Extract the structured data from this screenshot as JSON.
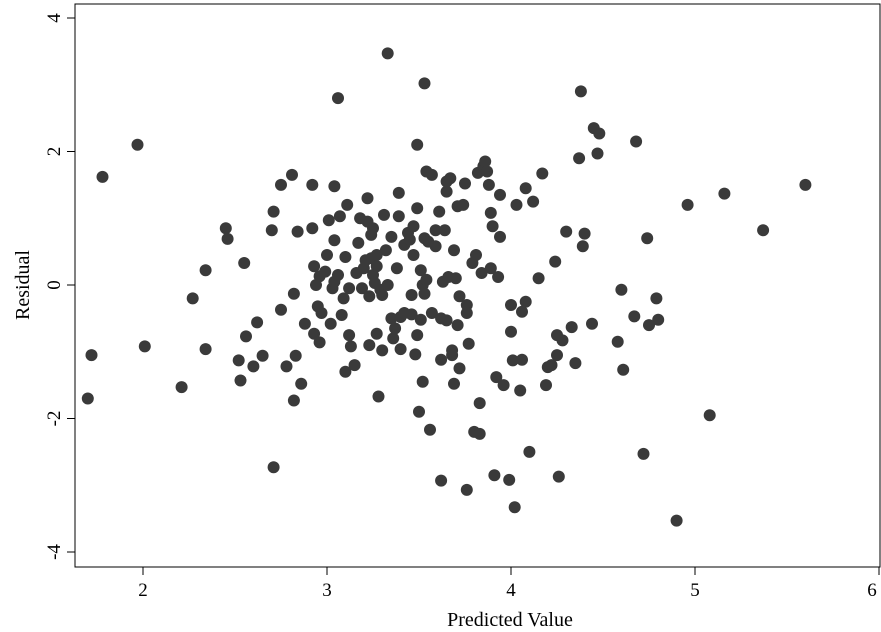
{
  "chart_data": {
    "type": "scatter",
    "xlabel": "Predicted Value",
    "ylabel": "Residual",
    "xlim": [
      1.65,
      6
    ],
    "ylim": [
      -4.2,
      4.2
    ],
    "xticks": [
      "2",
      "3",
      "4",
      "5",
      "6"
    ],
    "yticks": [
      "-4",
      "-2",
      "0",
      "2",
      "4"
    ],
    "grid": false,
    "marker_color": "#3a3a3a",
    "points": [
      [
        1.7,
        -1.7
      ],
      [
        1.72,
        -1.05
      ],
      [
        1.78,
        1.62
      ],
      [
        1.97,
        2.1
      ],
      [
        2.01,
        -0.92
      ],
      [
        2.21,
        -1.53
      ],
      [
        2.27,
        -0.2
      ],
      [
        2.34,
        0.22
      ],
      [
        2.34,
        -0.96
      ],
      [
        2.45,
        0.85
      ],
      [
        2.46,
        0.69
      ],
      [
        2.52,
        -1.13
      ],
      [
        2.53,
        -1.43
      ],
      [
        2.55,
        0.33
      ],
      [
        2.56,
        -0.77
      ],
      [
        2.6,
        -1.22
      ],
      [
        2.62,
        -0.56
      ],
      [
        2.65,
        -1.06
      ],
      [
        2.7,
        0.82
      ],
      [
        2.71,
        1.1
      ],
      [
        2.71,
        -2.73
      ],
      [
        2.75,
        1.5
      ],
      [
        2.75,
        -0.37
      ],
      [
        2.78,
        -1.22
      ],
      [
        2.81,
        1.65
      ],
      [
        2.82,
        -1.73
      ],
      [
        2.82,
        -0.13
      ],
      [
        2.83,
        -1.06
      ],
      [
        2.84,
        0.8
      ],
      [
        2.86,
        -1.48
      ],
      [
        2.88,
        -0.58
      ],
      [
        2.92,
        0.85
      ],
      [
        2.92,
        1.5
      ],
      [
        2.93,
        0.28
      ],
      [
        2.93,
        -0.73
      ],
      [
        2.94,
        0.0
      ],
      [
        2.95,
        -0.32
      ],
      [
        2.96,
        0.13
      ],
      [
        2.96,
        -0.86
      ],
      [
        2.97,
        -0.42
      ],
      [
        2.99,
        0.2
      ],
      [
        3.0,
        0.45
      ],
      [
        3.01,
        0.97
      ],
      [
        3.02,
        -0.58
      ],
      [
        3.03,
        -0.05
      ],
      [
        3.04,
        0.67
      ],
      [
        3.04,
        0.05
      ],
      [
        3.04,
        1.48
      ],
      [
        3.06,
        2.8
      ],
      [
        3.06,
        0.15
      ],
      [
        3.07,
        1.03
      ],
      [
        3.08,
        -0.45
      ],
      [
        3.09,
        -0.2
      ],
      [
        3.1,
        0.42
      ],
      [
        3.1,
        -1.3
      ],
      [
        3.11,
        1.2
      ],
      [
        3.12,
        -0.05
      ],
      [
        3.12,
        -0.75
      ],
      [
        3.13,
        -0.92
      ],
      [
        3.15,
        -1.2
      ],
      [
        3.16,
        0.18
      ],
      [
        3.17,
        0.63
      ],
      [
        3.18,
        1.0
      ],
      [
        3.19,
        -0.05
      ],
      [
        3.2,
        0.25
      ],
      [
        3.21,
        0.37
      ],
      [
        3.22,
        1.3
      ],
      [
        3.22,
        0.95
      ],
      [
        3.23,
        -0.9
      ],
      [
        3.23,
        -0.17
      ],
      [
        3.24,
        0.75
      ],
      [
        3.24,
        0.4
      ],
      [
        3.25,
        0.85
      ],
      [
        3.25,
        0.15
      ],
      [
        3.26,
        0.03
      ],
      [
        3.27,
        -0.73
      ],
      [
        3.27,
        0.45
      ],
      [
        3.27,
        0.28
      ],
      [
        3.28,
        -1.67
      ],
      [
        3.29,
        -0.07
      ],
      [
        3.3,
        -0.98
      ],
      [
        3.3,
        -0.15
      ],
      [
        3.31,
        1.05
      ],
      [
        3.32,
        0.52
      ],
      [
        3.33,
        3.47
      ],
      [
        3.33,
        0.0
      ],
      [
        3.35,
        -0.5
      ],
      [
        3.35,
        0.72
      ],
      [
        3.36,
        -0.8
      ],
      [
        3.37,
        -0.65
      ],
      [
        3.38,
        0.25
      ],
      [
        3.39,
        1.38
      ],
      [
        3.39,
        1.03
      ],
      [
        3.4,
        -0.48
      ],
      [
        3.4,
        -0.96
      ],
      [
        3.42,
        -0.42
      ],
      [
        3.42,
        0.6
      ],
      [
        3.44,
        0.78
      ],
      [
        3.45,
        0.68
      ],
      [
        3.46,
        -0.15
      ],
      [
        3.46,
        -0.44
      ],
      [
        3.47,
        0.88
      ],
      [
        3.47,
        0.45
      ],
      [
        3.48,
        -1.04
      ],
      [
        3.49,
        1.15
      ],
      [
        3.49,
        2.1
      ],
      [
        3.49,
        -0.75
      ],
      [
        3.5,
        -1.9
      ],
      [
        3.51,
        0.22
      ],
      [
        3.51,
        -0.52
      ],
      [
        3.52,
        0.0
      ],
      [
        3.52,
        -1.45
      ],
      [
        3.53,
        3.02
      ],
      [
        3.53,
        0.7
      ],
      [
        3.53,
        -0.13
      ],
      [
        3.54,
        0.08
      ],
      [
        3.54,
        1.7
      ],
      [
        3.55,
        0.65
      ],
      [
        3.56,
        -2.17
      ],
      [
        3.57,
        1.65
      ],
      [
        3.57,
        -0.42
      ],
      [
        3.59,
        0.58
      ],
      [
        3.59,
        0.82
      ],
      [
        3.61,
        1.1
      ],
      [
        3.62,
        -2.93
      ],
      [
        3.62,
        -1.12
      ],
      [
        3.62,
        -0.5
      ],
      [
        3.63,
        0.05
      ],
      [
        3.64,
        0.82
      ],
      [
        3.65,
        1.55
      ],
      [
        3.65,
        1.4
      ],
      [
        3.65,
        -0.53
      ],
      [
        3.66,
        0.12
      ],
      [
        3.67,
        1.6
      ],
      [
        3.68,
        -1.05
      ],
      [
        3.68,
        -0.98
      ],
      [
        3.69,
        -1.48
      ],
      [
        3.69,
        0.52
      ],
      [
        3.7,
        0.1
      ],
      [
        3.71,
        1.18
      ],
      [
        3.71,
        -0.6
      ],
      [
        3.72,
        -0.17
      ],
      [
        3.72,
        -1.25
      ],
      [
        3.74,
        1.2
      ],
      [
        3.75,
        1.52
      ],
      [
        3.76,
        -0.3
      ],
      [
        3.76,
        -0.42
      ],
      [
        3.76,
        -3.07
      ],
      [
        3.77,
        -0.88
      ],
      [
        3.79,
        0.33
      ],
      [
        3.8,
        -2.2
      ],
      [
        3.81,
        0.45
      ],
      [
        3.82,
        1.68
      ],
      [
        3.83,
        -2.23
      ],
      [
        3.83,
        -1.77
      ],
      [
        3.84,
        0.18
      ],
      [
        3.85,
        1.78
      ],
      [
        3.86,
        1.85
      ],
      [
        3.87,
        1.7
      ],
      [
        3.88,
        1.5
      ],
      [
        3.89,
        0.25
      ],
      [
        3.89,
        1.08
      ],
      [
        3.9,
        0.88
      ],
      [
        3.91,
        -2.85
      ],
      [
        3.92,
        -1.38
      ],
      [
        3.93,
        0.12
      ],
      [
        3.94,
        1.35
      ],
      [
        3.94,
        0.72
      ],
      [
        3.96,
        -1.5
      ],
      [
        3.99,
        -2.92
      ],
      [
        4.0,
        -0.7
      ],
      [
        4.0,
        -0.3
      ],
      [
        4.01,
        -1.13
      ],
      [
        4.02,
        -3.33
      ],
      [
        4.03,
        1.2
      ],
      [
        4.05,
        -1.58
      ],
      [
        4.06,
        -0.4
      ],
      [
        4.06,
        -1.12
      ],
      [
        4.08,
        1.45
      ],
      [
        4.08,
        -0.25
      ],
      [
        4.1,
        -2.5
      ],
      [
        4.12,
        1.25
      ],
      [
        4.15,
        0.1
      ],
      [
        4.17,
        1.67
      ],
      [
        4.19,
        -1.5
      ],
      [
        4.2,
        -1.23
      ],
      [
        4.22,
        -1.2
      ],
      [
        4.24,
        0.35
      ],
      [
        4.25,
        -1.05
      ],
      [
        4.25,
        -0.75
      ],
      [
        4.26,
        -2.87
      ],
      [
        4.28,
        -0.83
      ],
      [
        4.3,
        0.8
      ],
      [
        4.33,
        -0.63
      ],
      [
        4.35,
        -1.17
      ],
      [
        4.37,
        1.9
      ],
      [
        4.38,
        2.9
      ],
      [
        4.39,
        0.58
      ],
      [
        4.4,
        0.77
      ],
      [
        4.44,
        -0.58
      ],
      [
        4.45,
        2.35
      ],
      [
        4.47,
        1.97
      ],
      [
        4.48,
        2.27
      ],
      [
        4.58,
        -0.85
      ],
      [
        4.6,
        -0.07
      ],
      [
        4.61,
        -1.27
      ],
      [
        4.67,
        -0.47
      ],
      [
        4.68,
        2.15
      ],
      [
        4.72,
        -2.53
      ],
      [
        4.74,
        0.7
      ],
      [
        4.75,
        -0.6
      ],
      [
        4.79,
        -0.2
      ],
      [
        4.8,
        -0.52
      ],
      [
        4.9,
        -3.53
      ],
      [
        4.96,
        1.2
      ],
      [
        5.08,
        -1.95
      ],
      [
        5.16,
        1.37
      ],
      [
        5.37,
        0.82
      ],
      [
        5.6,
        1.5
      ]
    ]
  }
}
